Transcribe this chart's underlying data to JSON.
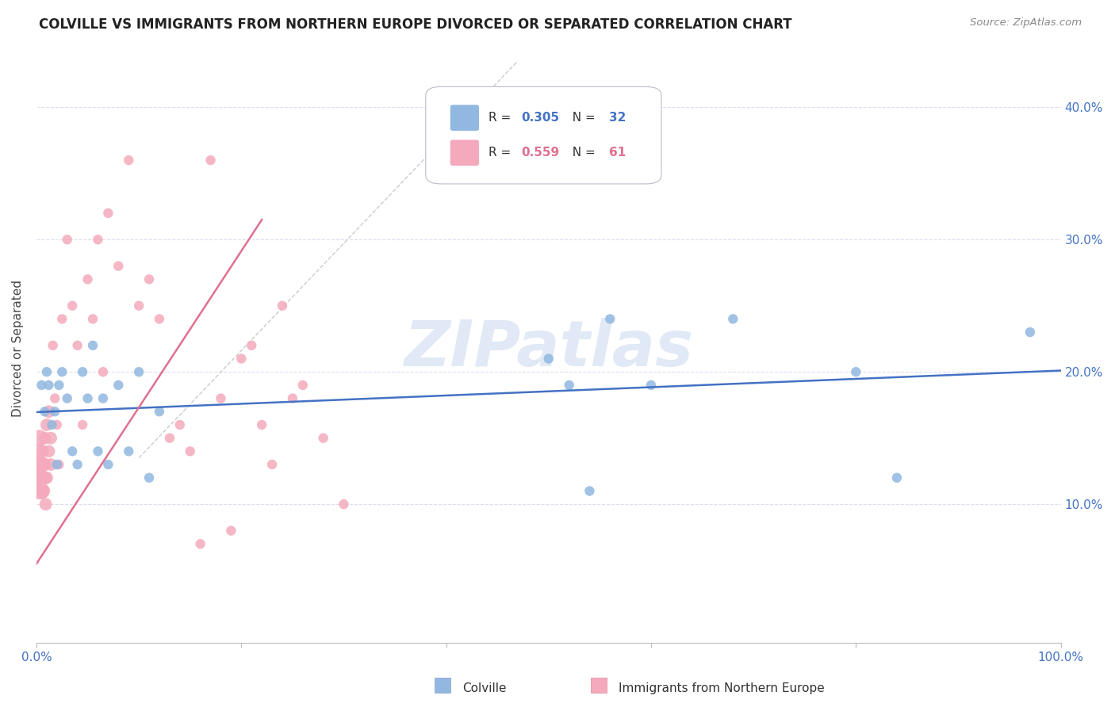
{
  "title": "COLVILLE VS IMMIGRANTS FROM NORTHERN EUROPE DIVORCED OR SEPARATED CORRELATION CHART",
  "source": "Source: ZipAtlas.com",
  "ylabel": "Divorced or Separated",
  "xlim": [
    0.0,
    1.0
  ],
  "ylim": [
    -0.005,
    0.44
  ],
  "yticks": [
    0.0,
    0.1,
    0.2,
    0.3,
    0.4
  ],
  "ytick_labels_left": [
    "",
    "",
    "",
    "",
    ""
  ],
  "ytick_labels_right": [
    "",
    "10.0%",
    "20.0%",
    "30.0%",
    "40.0%"
  ],
  "xticks": [
    0.0,
    0.2,
    0.4,
    0.6,
    0.8,
    1.0
  ],
  "xtick_labels": [
    "0.0%",
    "",
    "",
    "",
    "",
    "100.0%"
  ],
  "blue_R": 0.305,
  "blue_N": 32,
  "pink_R": 0.559,
  "pink_N": 61,
  "blue_color": "#91B8E0",
  "pink_color": "#F4AABC",
  "blue_line_color": "#4472C4",
  "pink_line_color": "#E07090",
  "grid_color": "#DDDDEE",
  "watermark": "ZIPatlas",
  "legend_label_blue": "Colville",
  "legend_label_pink": "Immigrants from Northern Europe",
  "blue_scatter_x": [
    0.005,
    0.008,
    0.01,
    0.012,
    0.015,
    0.018,
    0.02,
    0.022,
    0.025,
    0.03,
    0.035,
    0.04,
    0.045,
    0.05,
    0.055,
    0.06,
    0.065,
    0.07,
    0.08,
    0.09,
    0.1,
    0.11,
    0.12,
    0.5,
    0.52,
    0.54,
    0.56,
    0.6,
    0.68,
    0.8,
    0.84,
    0.97
  ],
  "blue_scatter_y": [
    0.19,
    0.17,
    0.2,
    0.19,
    0.16,
    0.17,
    0.13,
    0.19,
    0.2,
    0.18,
    0.14,
    0.13,
    0.2,
    0.18,
    0.22,
    0.14,
    0.18,
    0.13,
    0.19,
    0.14,
    0.2,
    0.12,
    0.17,
    0.21,
    0.19,
    0.11,
    0.24,
    0.19,
    0.24,
    0.2,
    0.12,
    0.23
  ],
  "pink_scatter_x": [
    0.0,
    0.0,
    0.001,
    0.001,
    0.002,
    0.002,
    0.003,
    0.003,
    0.004,
    0.004,
    0.005,
    0.005,
    0.006,
    0.006,
    0.007,
    0.007,
    0.008,
    0.008,
    0.009,
    0.009,
    0.01,
    0.01,
    0.012,
    0.012,
    0.014,
    0.014,
    0.016,
    0.018,
    0.02,
    0.022,
    0.025,
    0.03,
    0.035,
    0.04,
    0.045,
    0.05,
    0.055,
    0.06,
    0.065,
    0.07,
    0.08,
    0.09,
    0.1,
    0.11,
    0.12,
    0.13,
    0.14,
    0.15,
    0.16,
    0.17,
    0.18,
    0.19,
    0.2,
    0.21,
    0.22,
    0.23,
    0.24,
    0.25,
    0.26,
    0.28,
    0.3
  ],
  "pink_scatter_y": [
    0.12,
    0.11,
    0.13,
    0.12,
    0.14,
    0.12,
    0.15,
    0.13,
    0.12,
    0.11,
    0.13,
    0.11,
    0.14,
    0.12,
    0.12,
    0.11,
    0.15,
    0.13,
    0.12,
    0.1,
    0.16,
    0.12,
    0.17,
    0.14,
    0.15,
    0.13,
    0.22,
    0.18,
    0.16,
    0.13,
    0.24,
    0.3,
    0.25,
    0.22,
    0.16,
    0.27,
    0.24,
    0.3,
    0.2,
    0.32,
    0.28,
    0.36,
    0.25,
    0.27,
    0.24,
    0.15,
    0.16,
    0.14,
    0.07,
    0.36,
    0.18,
    0.08,
    0.21,
    0.22,
    0.16,
    0.13,
    0.25,
    0.18,
    0.19,
    0.15,
    0.1
  ],
  "dashed_line_color": "#CCCCCC",
  "title_fontsize": 12,
  "axis_label_color": "#4472C4",
  "axis_label_fontsize": 11
}
